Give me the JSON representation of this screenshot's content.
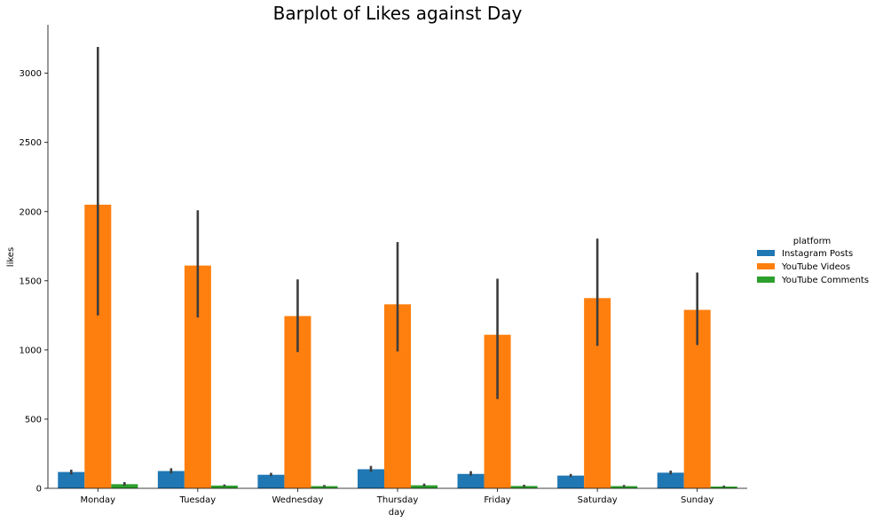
{
  "chart_data": {
    "type": "bar",
    "title": "Barplot of Likes against Day",
    "xlabel": "day",
    "ylabel": "likes",
    "categories": [
      "Monday",
      "Tuesday",
      "Wednesday",
      "Thursday",
      "Friday",
      "Saturday",
      "Sunday"
    ],
    "ylim": [
      0,
      3350
    ],
    "yticks": [
      0,
      500,
      1000,
      1500,
      2000,
      2500,
      3000
    ],
    "grid": false,
    "legend": {
      "title": "platform",
      "placement": "right"
    },
    "series": [
      {
        "name": "Instagram Posts",
        "color": "#1f77b4",
        "values": [
          118,
          125,
          98,
          138,
          104,
          92,
          113
        ],
        "ci": [
          [
            100,
            135
          ],
          [
            108,
            145
          ],
          [
            88,
            112
          ],
          [
            120,
            162
          ],
          [
            92,
            124
          ],
          [
            82,
            104
          ],
          [
            100,
            128
          ]
        ]
      },
      {
        "name": "YouTube Videos",
        "color": "#ff7f0e",
        "values": [
          2050,
          1610,
          1245,
          1330,
          1110,
          1375,
          1290
        ],
        "ci": [
          [
            1250,
            3190
          ],
          [
            1235,
            2010
          ],
          [
            985,
            1510
          ],
          [
            990,
            1780
          ],
          [
            645,
            1515
          ],
          [
            1030,
            1805
          ],
          [
            1035,
            1560
          ]
        ]
      },
      {
        "name": "YouTube Comments",
        "color": "#2ca02c",
        "values": [
          30,
          20,
          16,
          22,
          17,
          16,
          13
        ],
        "ci": [
          [
            20,
            45
          ],
          [
            14,
            28
          ],
          [
            10,
            24
          ],
          [
            14,
            34
          ],
          [
            10,
            26
          ],
          [
            10,
            24
          ],
          [
            8,
            20
          ]
        ]
      }
    ]
  }
}
